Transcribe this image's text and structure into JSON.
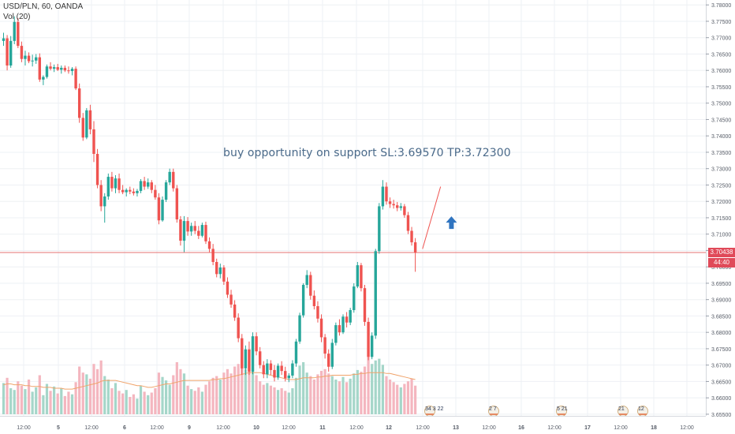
{
  "header": {
    "symbol_line": "USD/PLN, 60, OANDA",
    "volume_line": "Vol (20)"
  },
  "annotation": {
    "text": "buy opportunity on support SL:3.69570 TP:3.72300"
  },
  "price_axis": {
    "last_price_label": "3.70438",
    "countdown_label": "44:40"
  },
  "colors": {
    "up": "#26a69a",
    "down": "#ef5350",
    "vol_up": "#a5d6c9",
    "vol_down": "#f4b6bf",
    "vol_ma": "#f0a36a",
    "grid": "#eef0f4",
    "price_line": "#e57373",
    "arrow": "#2f74c0",
    "trend_line": "#ef5350"
  },
  "events": [
    {
      "label": "34 3 22"
    },
    {
      "label": "2 7"
    },
    {
      "label": "5 21"
    },
    {
      "label": "21"
    },
    {
      "label": "12"
    }
  ],
  "chart_data": {
    "type": "candlestick",
    "symbol": "USD/PLN",
    "interval": "60",
    "source": "OANDA",
    "ylim": [
      3.6545,
      3.7815
    ],
    "y_ticks": [
      "3.78000",
      "3.77500",
      "3.77000",
      "3.76500",
      "3.76000",
      "3.75500",
      "3.75000",
      "3.74500",
      "3.74000",
      "3.73500",
      "3.73000",
      "3.72500",
      "3.72000",
      "3.71500",
      "3.71000",
      "3.70500",
      "3.70000",
      "3.69500",
      "3.69000",
      "3.68500",
      "3.68000",
      "3.67500",
      "3.67000",
      "3.66500",
      "3.66000",
      "3.65500"
    ],
    "x_ticks": [
      "12:00",
      "5",
      "12:00",
      "6",
      "12:00",
      "9",
      "12:00",
      "10",
      "12:00",
      "11",
      "12:00",
      "12",
      "12:00",
      "13",
      "12:00",
      "16",
      "12:00",
      "17",
      "12:00",
      "18",
      "12:00"
    ],
    "last_price": 3.70438,
    "candles": [
      [
        3.769,
        3.7715,
        3.7675,
        3.7698
      ],
      [
        3.7698,
        3.7708,
        3.76,
        3.7615
      ],
      [
        3.7615,
        3.7705,
        3.7608,
        3.769
      ],
      [
        3.769,
        3.7765,
        3.768,
        3.7748
      ],
      [
        3.7748,
        3.776,
        3.7668,
        3.7675
      ],
      [
        3.7675,
        3.7688,
        3.7625,
        3.7635
      ],
      [
        3.7635,
        3.766,
        3.7615,
        3.7645
      ],
      [
        3.7645,
        3.7655,
        3.7622,
        3.7628
      ],
      [
        3.7628,
        3.7648,
        3.7612,
        3.763
      ],
      [
        3.763,
        3.765,
        3.762,
        3.764
      ],
      [
        3.764,
        3.7652,
        3.7565,
        3.7572
      ],
      [
        3.7572,
        3.7585,
        3.7555,
        3.758
      ],
      [
        3.758,
        3.7618,
        3.7575,
        3.7612
      ],
      [
        3.7612,
        3.7625,
        3.76,
        3.7605
      ],
      [
        3.7605,
        3.7618,
        3.7595,
        3.761
      ],
      [
        3.761,
        3.762,
        3.7598,
        3.7602
      ],
      [
        3.7602,
        3.7615,
        3.759,
        3.7608
      ],
      [
        3.7608,
        3.7615,
        3.7595,
        3.76
      ],
      [
        3.76,
        3.7612,
        3.759,
        3.7598
      ],
      [
        3.7598,
        3.761,
        3.7585,
        3.7605
      ],
      [
        3.7605,
        3.7612,
        3.754,
        3.7545
      ],
      [
        3.7545,
        3.756,
        3.744,
        3.7455
      ],
      [
        3.7455,
        3.747,
        3.7385,
        3.7395
      ],
      [
        3.7395,
        3.7485,
        3.739,
        3.7478
      ],
      [
        3.7478,
        3.7495,
        3.7405,
        3.742
      ],
      [
        3.742,
        3.7445,
        3.732,
        3.7345
      ],
      [
        3.7345,
        3.736,
        3.724,
        3.725
      ],
      [
        3.725,
        3.7265,
        3.717,
        3.7185
      ],
      [
        3.7185,
        3.7225,
        3.7135,
        3.7215
      ],
      [
        3.7215,
        3.7285,
        3.7205,
        3.7275
      ],
      [
        3.7275,
        3.729,
        3.723,
        3.724
      ],
      [
        3.724,
        3.728,
        3.7225,
        3.727
      ],
      [
        3.727,
        3.7285,
        3.7225,
        3.7235
      ],
      [
        3.7235,
        3.725,
        3.7222,
        3.7228
      ],
      [
        3.7228,
        3.724,
        3.7215,
        3.7235
      ],
      [
        3.7235,
        3.7245,
        3.7222,
        3.723
      ],
      [
        3.723,
        3.724,
        3.7218,
        3.7225
      ],
      [
        3.7225,
        3.7238,
        3.7215,
        3.7232
      ],
      [
        3.7232,
        3.7268,
        3.7225,
        3.7262
      ],
      [
        3.7262,
        3.7275,
        3.7235,
        3.7245
      ],
      [
        3.7245,
        3.727,
        3.7238,
        3.7258
      ],
      [
        3.7258,
        3.7265,
        3.7225,
        3.7235
      ],
      [
        3.7235,
        3.725,
        3.7205,
        3.7212
      ],
      [
        3.7212,
        3.7225,
        3.713,
        3.7142
      ],
      [
        3.7142,
        3.7215,
        3.7138,
        3.7205
      ],
      [
        3.7205,
        3.7265,
        3.7198,
        3.7258
      ],
      [
        3.7258,
        3.73,
        3.725,
        3.729
      ],
      [
        3.729,
        3.73,
        3.723,
        3.724
      ],
      [
        3.724,
        3.725,
        3.7135,
        3.7145
      ],
      [
        3.7145,
        3.7155,
        3.7065,
        3.708
      ],
      [
        3.708,
        3.7155,
        3.7045,
        3.714
      ],
      [
        3.714,
        3.7152,
        3.7095,
        3.7108
      ],
      [
        3.7108,
        3.7135,
        3.7095,
        3.7125
      ],
      [
        3.7125,
        3.714,
        3.71,
        3.711
      ],
      [
        3.711,
        3.7125,
        3.7085,
        3.7095
      ],
      [
        3.7095,
        3.7135,
        3.709,
        3.7128
      ],
      [
        3.7128,
        3.7138,
        3.707,
        3.7078
      ],
      [
        3.7078,
        3.709,
        3.7045,
        3.7055
      ],
      [
        3.7055,
        3.707,
        3.7005,
        3.7015
      ],
      [
        3.7015,
        3.7025,
        3.6968,
        3.6978
      ],
      [
        3.6978,
        3.701,
        3.6965,
        3.6998
      ],
      [
        3.6998,
        3.7005,
        3.6945,
        3.6955
      ],
      [
        3.6955,
        3.6968,
        3.6905,
        3.6915
      ],
      [
        3.6915,
        3.693,
        3.6875,
        3.6885
      ],
      [
        3.6885,
        3.6898,
        3.6835,
        3.6845
      ],
      [
        3.6845,
        3.6858,
        3.677,
        3.6782
      ],
      [
        3.6782,
        3.6795,
        3.667,
        3.669
      ],
      [
        3.669,
        3.676,
        3.667,
        3.6748
      ],
      [
        3.6748,
        3.6772,
        3.667,
        3.668
      ],
      [
        3.668,
        3.68,
        3.6672,
        3.6788
      ],
      [
        3.6788,
        3.68,
        3.673,
        3.6742
      ],
      [
        3.6742,
        3.6755,
        3.669,
        3.67
      ],
      [
        3.67,
        3.6712,
        3.666,
        3.6672
      ],
      [
        3.6672,
        3.6718,
        3.666,
        3.6705
      ],
      [
        3.6705,
        3.6715,
        3.667,
        3.6685
      ],
      [
        3.6685,
        3.67,
        3.665,
        3.6662
      ],
      [
        3.6662,
        3.6705,
        3.6655,
        3.6698
      ],
      [
        3.6698,
        3.6712,
        3.667,
        3.6682
      ],
      [
        3.6682,
        3.6695,
        3.665,
        3.666
      ],
      [
        3.666,
        3.6675,
        3.6648,
        3.6668
      ],
      [
        3.6668,
        3.6715,
        3.666,
        3.6705
      ],
      [
        3.6705,
        3.678,
        3.6695,
        3.6772
      ],
      [
        3.6772,
        3.686,
        3.6765,
        3.6852
      ],
      [
        3.6852,
        3.695,
        3.6845,
        3.6945
      ],
      [
        3.6945,
        3.699,
        3.6935,
        3.6975
      ],
      [
        3.6975,
        3.6985,
        3.69,
        3.6912
      ],
      [
        3.6912,
        3.6928,
        3.687,
        3.688
      ],
      [
        3.688,
        3.6895,
        3.683,
        3.6842
      ],
      [
        3.6842,
        3.6855,
        3.677,
        3.6785
      ],
      [
        3.6785,
        3.6795,
        3.672,
        3.6735
      ],
      [
        3.6735,
        3.6748,
        3.668,
        3.6695
      ],
      [
        3.6695,
        3.678,
        3.6688,
        3.6768
      ],
      [
        3.6768,
        3.683,
        3.676,
        3.6822
      ],
      [
        3.6822,
        3.684,
        3.679,
        3.68
      ],
      [
        3.68,
        3.6855,
        3.6795,
        3.6848
      ],
      [
        3.6848,
        3.6862,
        3.6815,
        3.683
      ],
      [
        3.683,
        3.6875,
        3.6822,
        3.6868
      ],
      [
        3.6868,
        3.695,
        3.686,
        3.694
      ],
      [
        3.694,
        3.7015,
        3.6935,
        3.7005
      ],
      [
        3.7005,
        3.7012,
        3.6925,
        3.6935
      ],
      [
        3.6935,
        3.6945,
        3.682,
        3.6832
      ],
      [
        3.6832,
        3.6845,
        3.6715,
        3.6725
      ],
      [
        3.6725,
        3.68,
        3.6718,
        3.679
      ],
      [
        3.679,
        3.7055,
        3.678,
        3.7048
      ],
      [
        3.7048,
        3.7195,
        3.704,
        3.7185
      ],
      [
        3.7185,
        3.7265,
        3.7175,
        3.7245
      ],
      [
        3.7245,
        3.7258,
        3.719,
        3.72
      ],
      [
        3.72,
        3.7212,
        3.718,
        3.7192
      ],
      [
        3.7192,
        3.7205,
        3.7178,
        3.7188
      ],
      [
        3.7188,
        3.7198,
        3.717,
        3.718
      ],
      [
        3.718,
        3.7195,
        3.7172,
        3.7185
      ],
      [
        3.7185,
        3.7192,
        3.715,
        3.7158
      ],
      [
        3.7158,
        3.7168,
        3.71,
        3.711
      ],
      [
        3.711,
        3.7122,
        3.7065,
        3.7075
      ],
      [
        3.7075,
        3.7088,
        3.6985,
        3.7044
      ]
    ],
    "volume": [
      0.36,
      0.42,
      0.3,
      0.28,
      0.38,
      0.33,
      0.29,
      0.4,
      0.26,
      0.31,
      0.45,
      0.22,
      0.35,
      0.27,
      0.32,
      0.24,
      0.3,
      0.21,
      0.26,
      0.23,
      0.37,
      0.55,
      0.48,
      0.46,
      0.41,
      0.58,
      0.52,
      0.62,
      0.44,
      0.4,
      0.3,
      0.36,
      0.27,
      0.24,
      0.28,
      0.2,
      0.23,
      0.18,
      0.33,
      0.26,
      0.22,
      0.25,
      0.3,
      0.48,
      0.43,
      0.39,
      0.34,
      0.45,
      0.6,
      0.52,
      0.47,
      0.33,
      0.29,
      0.27,
      0.31,
      0.26,
      0.34,
      0.38,
      0.42,
      0.44,
      0.4,
      0.48,
      0.52,
      0.47,
      0.55,
      0.58,
      0.66,
      0.52,
      0.61,
      0.54,
      0.45,
      0.38,
      0.34,
      0.36,
      0.33,
      0.31,
      0.28,
      0.3,
      0.27,
      0.25,
      0.3,
      0.42,
      0.56,
      0.6,
      0.48,
      0.44,
      0.4,
      0.46,
      0.5,
      0.52,
      0.47,
      0.44,
      0.4,
      0.38,
      0.43,
      0.37,
      0.41,
      0.47,
      0.51,
      0.49,
      0.55,
      0.66,
      0.58,
      0.62,
      0.64,
      0.57,
      0.44,
      0.4,
      0.37,
      0.34,
      0.31,
      0.35,
      0.38,
      0.41,
      0.33
    ],
    "volume_ma": [
      0.34,
      0.35,
      0.35,
      0.34,
      0.34,
      0.34,
      0.33,
      0.33,
      0.32,
      0.32,
      0.32,
      0.31,
      0.31,
      0.31,
      0.3,
      0.3,
      0.3,
      0.29,
      0.29,
      0.29,
      0.3,
      0.31,
      0.32,
      0.33,
      0.34,
      0.35,
      0.36,
      0.38,
      0.39,
      0.39,
      0.39,
      0.39,
      0.38,
      0.37,
      0.36,
      0.35,
      0.34,
      0.33,
      0.33,
      0.32,
      0.31,
      0.31,
      0.32,
      0.33,
      0.34,
      0.35,
      0.35,
      0.36,
      0.37,
      0.38,
      0.39,
      0.39,
      0.39,
      0.39,
      0.39,
      0.39,
      0.39,
      0.39,
      0.4,
      0.4,
      0.41,
      0.41,
      0.42,
      0.43,
      0.44,
      0.45,
      0.46,
      0.47,
      0.48,
      0.48,
      0.48,
      0.48,
      0.47,
      0.46,
      0.45,
      0.44,
      0.43,
      0.42,
      0.41,
      0.4,
      0.4,
      0.4,
      0.41,
      0.42,
      0.42,
      0.42,
      0.42,
      0.43,
      0.43,
      0.44,
      0.44,
      0.45,
      0.45,
      0.45,
      0.45,
      0.45,
      0.45,
      0.46,
      0.46,
      0.47,
      0.47,
      0.48,
      0.48,
      0.48,
      0.48,
      0.48,
      0.47,
      0.47,
      0.46,
      0.45,
      0.44,
      0.43,
      0.42,
      0.41,
      0.4
    ],
    "annotations": {
      "text": "buy opportunity on support SL:3.69570 TP:3.72300",
      "trend_line": {
        "from": [
          116,
          3.7055
        ],
        "to": [
          121,
          3.7245
        ]
      },
      "arrow_up": {
        "x": 124,
        "y": 3.7135
      }
    }
  }
}
